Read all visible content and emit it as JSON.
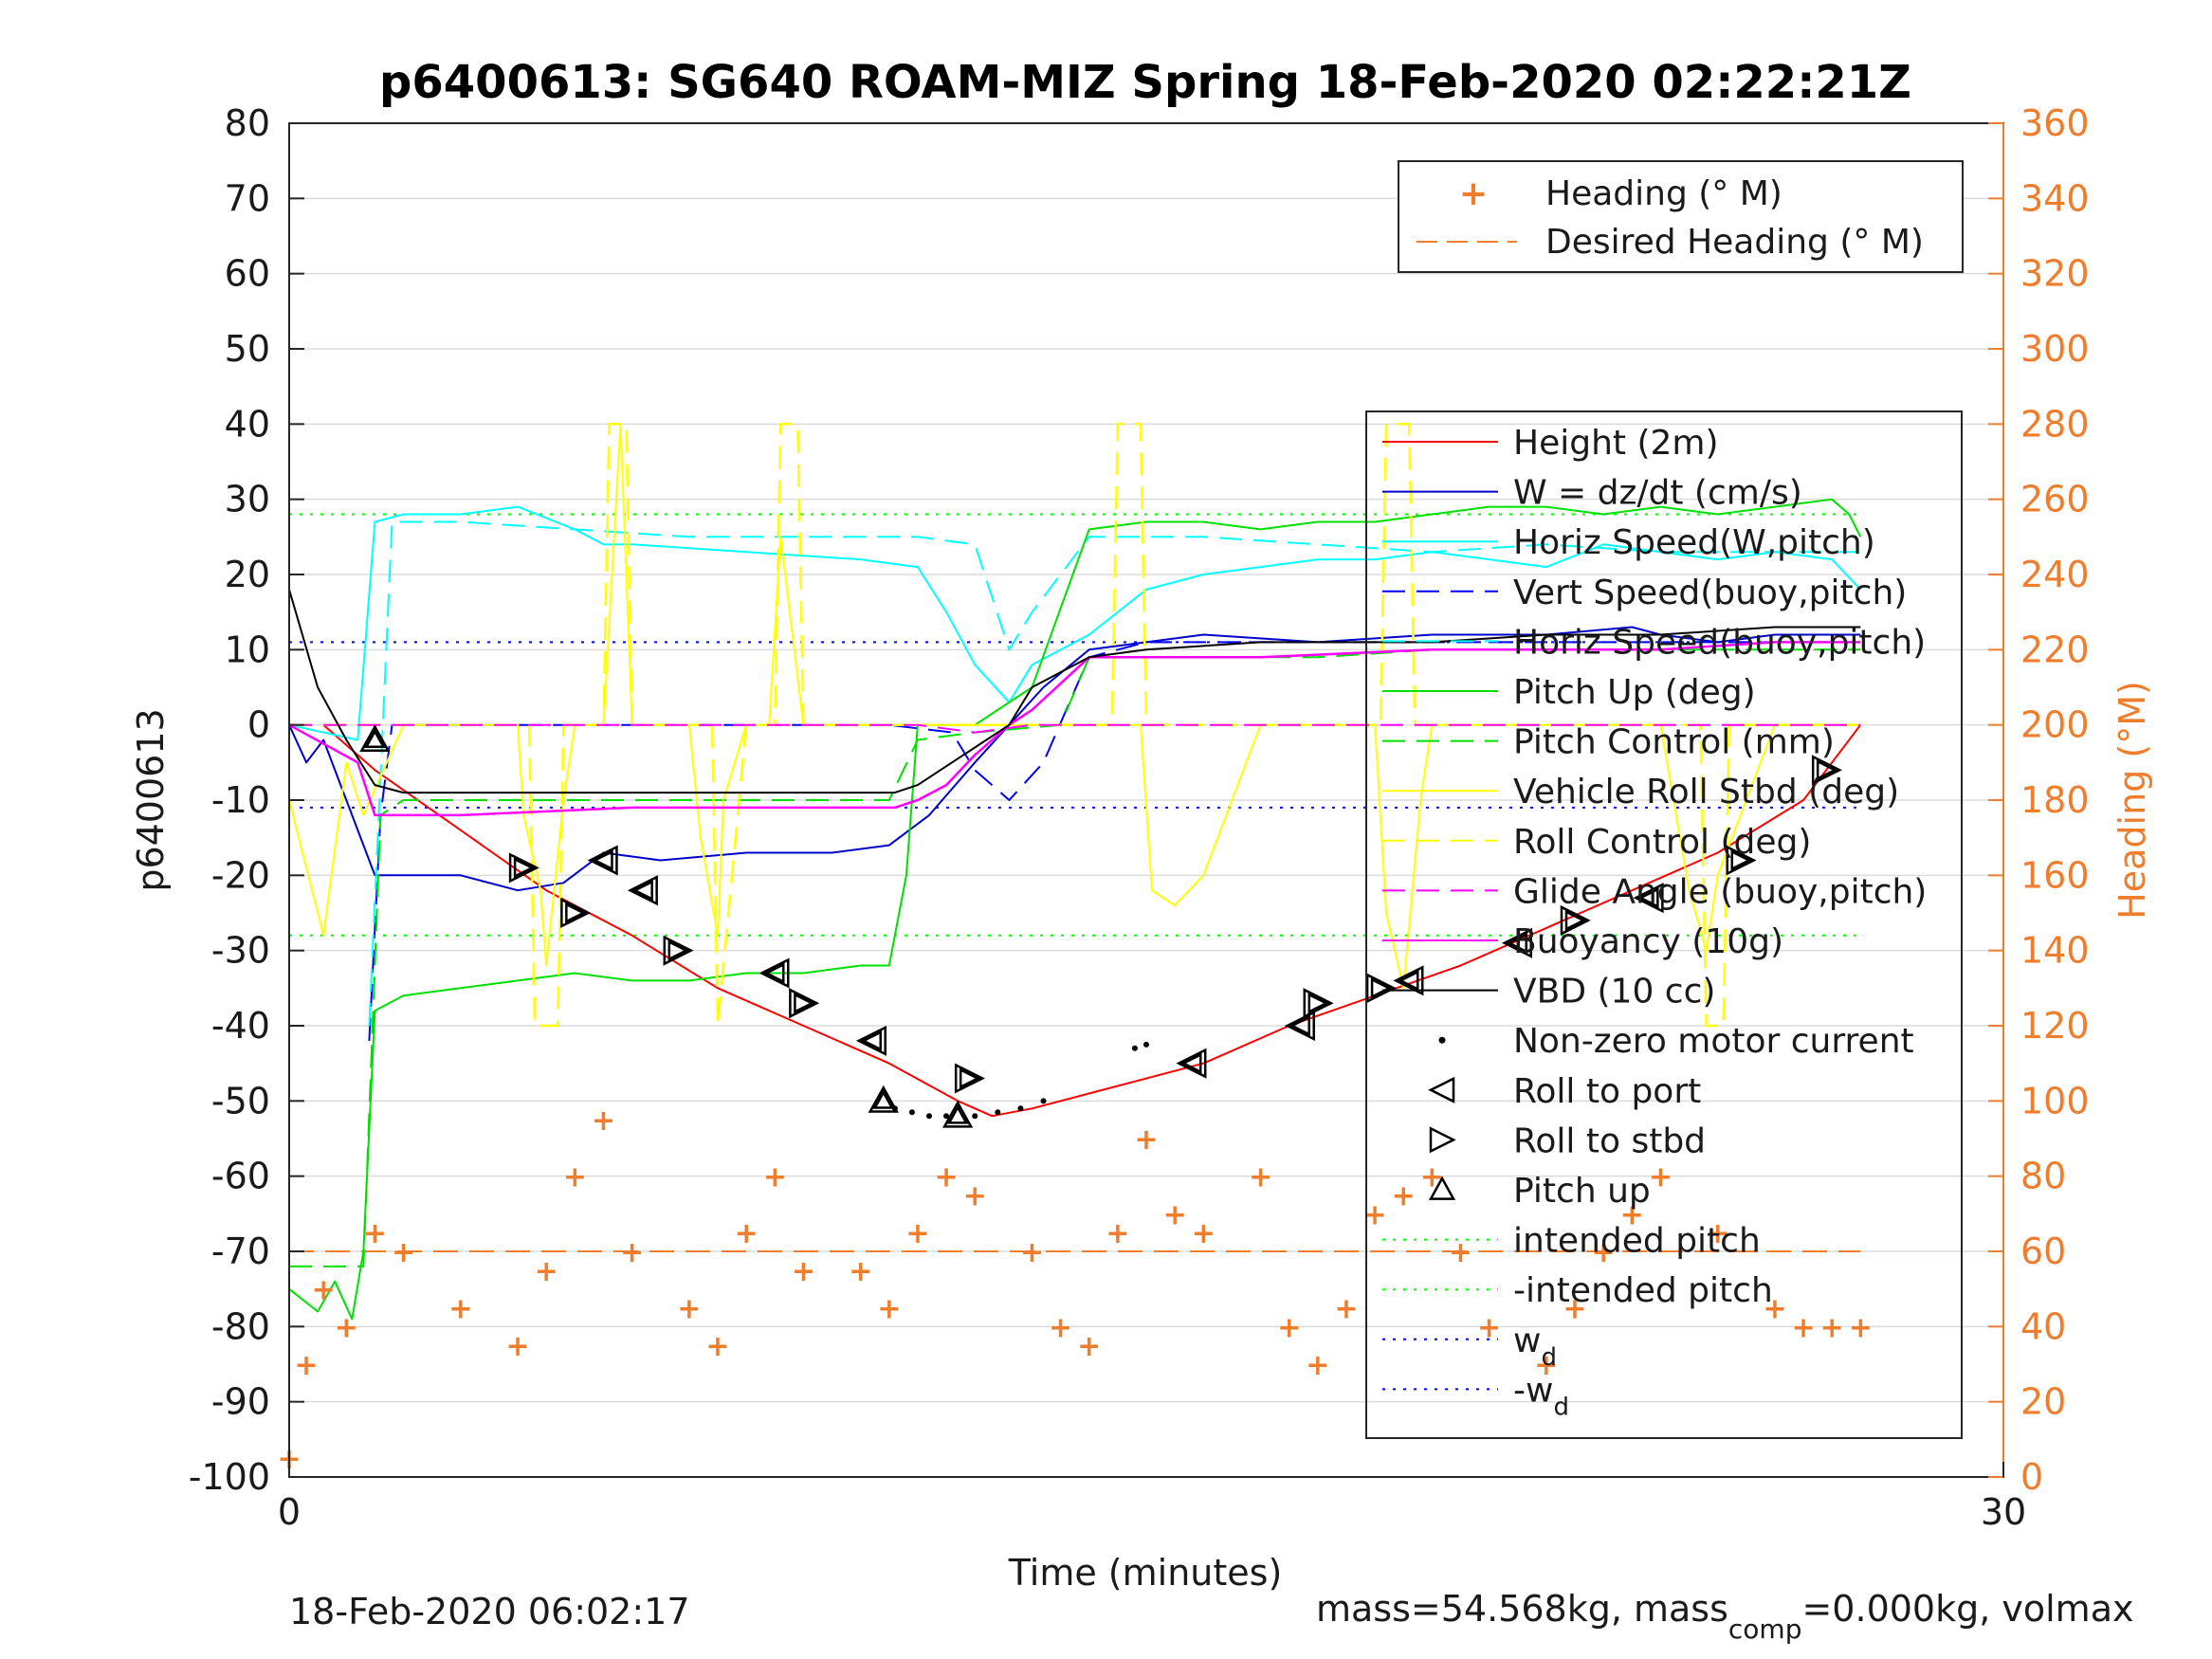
{
  "figure": {
    "title": "p6400613: SG640 ROAM-MIZ Spring 18-Feb-2020 02:22:21Z",
    "footer_left": "18-Feb-2020 06:02:17",
    "footer_right_prefix": "mass=54.568kg, mass",
    "footer_right_sub": "comp",
    "footer_right_suffix": "=0.000kg, volmax"
  },
  "colors": {
    "height": "#ff0000",
    "w": "#0000cc",
    "horiz_w": "#00ffff",
    "vert_buoy": "#0000ff",
    "horiz_buoy": "#00ffff",
    "pitch": "#00e000",
    "pitch_ctrl": "#00e000",
    "roll": "#ffff00",
    "roll_ctrl": "#ffff00",
    "glide": "#ff00ff",
    "buoy": "#ff00ff",
    "vbd": "#000000",
    "heading": "#f07d2c",
    "intended": "#00ff00",
    "wd": "#0000ff"
  },
  "chart_data": {
    "type": "line",
    "title": "p6400613: SG640 ROAM-MIZ Spring 18-Feb-2020 02:22:21Z",
    "xlabel": "Time (minutes)",
    "ylabel": "p6400613",
    "y2label": "Heading (°M)",
    "xlim": [
      0,
      30
    ],
    "ylim": [
      -100,
      80
    ],
    "y2lim": [
      0,
      360
    ],
    "x_ticks": [
      "0",
      "30"
    ],
    "y_ticks": [
      "80",
      "70",
      "60",
      "50",
      "40",
      "30",
      "20",
      "10",
      "0",
      "-10",
      "-20",
      "-30",
      "-40",
      "-50",
      "-60",
      "-70",
      "-80",
      "-90",
      "-100"
    ],
    "y2_ticks": [
      "360",
      "340",
      "320",
      "300",
      "280",
      "260",
      "240",
      "220",
      "200",
      "180",
      "160",
      "140",
      "120",
      "100",
      "80",
      "60",
      "40",
      "20",
      "0"
    ],
    "grid": true,
    "legend_top": [
      "Heading (° M)",
      "Desired Heading (° M)"
    ],
    "legend_main": [
      "Height (2m)",
      "W = dz/dt (cm/s)",
      "Horiz Speed(W,pitch)",
      "Vert Speed(buoy,pitch)",
      "Horiz Speed(buoy,pitch)",
      "Pitch Up (deg)",
      "Pitch Control (mm)",
      "Vehicle Roll Stbd (deg)",
      "Roll Control (deg)",
      "Glide Angle (buoy,pitch)",
      "Buoyancy (10g)",
      "VBD (10 cc)",
      "Non-zero motor current",
      "Roll to port",
      "Roll to stbd",
      "Pitch up",
      "intended pitch",
      "-intended pitch",
      "w",
      "-w"
    ],
    "legend_sub_d": "d",
    "reference_lines": {
      "intended_pitch": 28,
      "neg_intended_pitch": -28,
      "wd": 11,
      "neg_wd": -11,
      "desired_heading": 60
    },
    "series": [
      {
        "name": "Height (2m)",
        "x": [
          0.6,
          1.5,
          3,
          4.5,
          6,
          7.5,
          9,
          10.5,
          11.7,
          12.3,
          13,
          14.5,
          16,
          17.5,
          19,
          20.5,
          22,
          23.5,
          25,
          26.5,
          27.5
        ],
        "y": [
          0,
          -6,
          -14,
          -22,
          -28,
          -35,
          -40,
          -45,
          -50,
          -52,
          -51,
          -48,
          -45,
          -40,
          -36,
          -32,
          -27,
          -22,
          -17,
          -10,
          0
        ]
      },
      {
        "name": "W = dz/dt (cm/s)",
        "x": [
          0,
          0.3,
          0.6,
          1.0,
          1.5,
          3,
          4,
          4.8,
          5.5,
          6.5,
          8,
          9.5,
          10.5,
          11.2,
          12,
          12.6,
          13.2,
          14,
          15,
          16,
          18,
          20,
          22,
          23.5,
          24,
          25,
          26,
          27,
          27.5
        ],
        "y": [
          0,
          -5,
          -2,
          -10,
          -20,
          -20,
          -22,
          -21,
          -17,
          -18,
          -17,
          -17,
          -16,
          -12,
          -5,
          0,
          5,
          10,
          11,
          12,
          11,
          12,
          12,
          13,
          12,
          11,
          12,
          12,
          12
        ]
      },
      {
        "name": "Horiz Speed(W,pitch)",
        "x": [
          0,
          1.2,
          1.5,
          2,
          3,
          4,
          5,
          5.5,
          6,
          8,
          10,
          11,
          11.5,
          12,
          12.6,
          13,
          14,
          15,
          16,
          17,
          18,
          19,
          20,
          21,
          22,
          23,
          24,
          25,
          26,
          27,
          27.5
        ],
        "y": [
          0,
          -2,
          27,
          28,
          28,
          29,
          26,
          24,
          24,
          23,
          22,
          21,
          15,
          8,
          3,
          8,
          12,
          18,
          20,
          21,
          22,
          22,
          23,
          22,
          21,
          24,
          23,
          22,
          23,
          22,
          18
        ]
      },
      {
        "name": "Vert Speed(buoy,pitch)",
        "x": [
          1.4,
          1.6,
          1.8,
          2.2,
          3,
          5,
          8,
          10.5,
          11.6,
          12,
          12.6,
          13.2,
          14,
          15,
          17,
          20,
          22,
          24,
          26,
          27.5
        ],
        "y": [
          -42,
          -12,
          0,
          0,
          0,
          0,
          0,
          0,
          -1,
          -6,
          -10,
          -5,
          9,
          11,
          11,
          11,
          11,
          11,
          11,
          11
        ]
      },
      {
        "name": "Horiz Speed(buoy,pitch)",
        "x": [
          1.4,
          1.8,
          3,
          5,
          7,
          9,
          11,
          12,
          12.6,
          13,
          14,
          16,
          18,
          20,
          22,
          24,
          26,
          27.5
        ],
        "y": [
          -40,
          27,
          27,
          26,
          25,
          25,
          25,
          24,
          10,
          15,
          25,
          25,
          24,
          23,
          24,
          23,
          23,
          23
        ]
      },
      {
        "name": "Pitch Up (deg)",
        "x": [
          0,
          0.5,
          0.8,
          1.1,
          1.3,
          1.5,
          2,
          3,
          4,
          5,
          6,
          7,
          8,
          9,
          10,
          10.5,
          10.8,
          11,
          12,
          13,
          14,
          15,
          16,
          17,
          18,
          19,
          20,
          21,
          22,
          23,
          24,
          25,
          26,
          27,
          27.3,
          27.5
        ],
        "y": [
          -75,
          -78,
          -74,
          -79,
          -70,
          -38,
          -36,
          -35,
          -34,
          -33,
          -34,
          -34,
          -33,
          -33,
          -32,
          -32,
          -20,
          0,
          0,
          5,
          26,
          27,
          27,
          26,
          27,
          27,
          28,
          29,
          29,
          28,
          29,
          28,
          29,
          30,
          28,
          25
        ]
      },
      {
        "name": "Pitch Control (mm)",
        "x": [
          0,
          1.3,
          1.6,
          2,
          4,
          6,
          8,
          10,
          10.5,
          11,
          12,
          13.5,
          14,
          16,
          18,
          20,
          22,
          24,
          26,
          27.5
        ],
        "y": [
          -72,
          -72,
          -12,
          -10,
          -10,
          -10,
          -10,
          -10,
          -10,
          -2,
          -1,
          0,
          9,
          9,
          9,
          10,
          10,
          10,
          10,
          10
        ]
      },
      {
        "name": "Vehicle Roll Stbd (deg)",
        "x": [
          0,
          0.6,
          1,
          1.3,
          2,
          3,
          4,
          4.1,
          4.4,
          4.5,
          4.8,
          5,
          5.1,
          5.5,
          5.8,
          6,
          7,
          7.2,
          7.5,
          7.6,
          8,
          8.4,
          8.6,
          9,
          10,
          11,
          12,
          13,
          14,
          14.5,
          14.9,
          15.1,
          15.5,
          16,
          17,
          18,
          19,
          19.2,
          19.5,
          19.8,
          20,
          21,
          22,
          23,
          24,
          24.5,
          24.8,
          25,
          26,
          27,
          27.5
        ],
        "y": [
          -10,
          -28,
          -5,
          -12,
          0,
          0,
          0,
          -12,
          -22,
          -32,
          -10,
          0,
          0,
          0,
          40,
          0,
          0,
          -15,
          -28,
          -10,
          0,
          0,
          25,
          0,
          0,
          0,
          0,
          0,
          0,
          0,
          0,
          -22,
          -24,
          -20,
          0,
          0,
          0,
          -25,
          -35,
          -10,
          0,
          0,
          0,
          0,
          0,
          -22,
          -30,
          -20,
          0,
          0,
          0
        ]
      },
      {
        "name": "Roll Control (deg)",
        "x": [
          0,
          1,
          2,
          4.2,
          4.3,
          4.7,
          4.8,
          5.5,
          5.6,
          5.9,
          6,
          7.4,
          7.5,
          8,
          8.5,
          8.6,
          8.9,
          9,
          14.4,
          14.5,
          14.9,
          15,
          19.1,
          19.2,
          19.6,
          19.7,
          24.7,
          24.8,
          25.1,
          25.2,
          27.5
        ],
        "y": [
          0,
          0,
          0,
          0,
          -40,
          -40,
          0,
          0,
          40,
          40,
          0,
          0,
          -40,
          0,
          0,
          40,
          40,
          0,
          0,
          40,
          40,
          0,
          0,
          40,
          40,
          0,
          0,
          -40,
          -40,
          0,
          0
        ]
      },
      {
        "name": "Glide Angle (buoy,pitch)",
        "x": [
          0,
          3,
          6,
          9,
          10,
          11,
          12,
          13,
          14,
          16,
          18,
          20,
          22,
          24,
          26,
          27.5
        ],
        "y": [
          0,
          0,
          0,
          0,
          0,
          0,
          -1,
          0,
          0,
          0,
          0,
          0,
          0,
          0,
          0,
          0
        ]
      },
      {
        "name": "Buoyancy (10g)",
        "x": [
          0,
          1.2,
          1.5,
          3,
          6,
          9,
          10,
          10.6,
          11,
          11.5,
          12,
          12.6,
          13,
          14,
          15,
          17,
          20,
          22,
          24,
          26,
          27.5
        ],
        "y": [
          0,
          -5,
          -12,
          -12,
          -11,
          -11,
          -11,
          -11,
          -10,
          -8,
          -4,
          0,
          2,
          9,
          9,
          9,
          10,
          10,
          10,
          11,
          11
        ]
      },
      {
        "name": "VBD (10 cc)",
        "x": [
          0,
          0.5,
          1,
          1.5,
          2,
          3,
          5,
          7,
          9,
          10,
          10.6,
          11,
          12,
          12.6,
          13,
          14,
          15,
          17,
          20,
          22,
          24,
          26,
          27.5
        ],
        "y": [
          18,
          5,
          -2,
          -8,
          -9,
          -9,
          -9,
          -9,
          -9,
          -9,
          -9,
          -8,
          -3,
          0,
          5,
          9,
          10,
          11,
          11,
          12,
          12,
          13,
          13
        ]
      },
      {
        "name": "Heading (° M)",
        "x": [
          0,
          0.3,
          0.6,
          1,
          1.5,
          2,
          3,
          4,
          4.5,
          5,
          5.5,
          6,
          7,
          7.5,
          8,
          8.5,
          9,
          10,
          10.5,
          11,
          11.5,
          12,
          13,
          13.5,
          14,
          14.5,
          15,
          15.5,
          16,
          17,
          17.5,
          18,
          18.5,
          19,
          19.5,
          20,
          20.5,
          21,
          22,
          22.5,
          23,
          23.5,
          24,
          25,
          26,
          26.5,
          27,
          27.5
        ],
        "y": [
          5,
          30,
          50,
          40,
          65,
          60,
          45,
          35,
          55,
          80,
          95,
          60,
          45,
          35,
          65,
          80,
          55,
          55,
          45,
          65,
          80,
          75,
          60,
          40,
          35,
          65,
          90,
          70,
          65,
          80,
          40,
          30,
          45,
          70,
          75,
          80,
          60,
          40,
          30,
          45,
          60,
          70,
          80,
          65,
          45,
          40,
          40,
          40
        ]
      }
    ],
    "markers": {
      "roll_to_port": [
        [
          5.5,
          -18
        ],
        [
          6.2,
          -22
        ],
        [
          8.5,
          -33
        ],
        [
          10.2,
          -42
        ],
        [
          15.8,
          -45
        ],
        [
          17.7,
          -40
        ],
        [
          19.6,
          -34
        ],
        [
          21.5,
          -29
        ],
        [
          23.8,
          -23
        ]
      ],
      "roll_to_stbd": [
        [
          4.1,
          -19
        ],
        [
          5.0,
          -25
        ],
        [
          6.8,
          -30
        ],
        [
          9.0,
          -37
        ],
        [
          11.9,
          -47
        ],
        [
          18.0,
          -37
        ],
        [
          19.1,
          -35
        ],
        [
          22.5,
          -26
        ],
        [
          25.4,
          -18
        ],
        [
          26.9,
          -6
        ]
      ],
      "pitch_up": [
        [
          1.5,
          -2
        ],
        [
          10.4,
          -50
        ],
        [
          11.7,
          -52
        ]
      ],
      "motor_current": [
        [
          10.6,
          -51
        ],
        [
          10.9,
          -51.5
        ],
        [
          11.2,
          -52
        ],
        [
          11.5,
          -52
        ],
        [
          12.0,
          -52
        ],
        [
          12.4,
          -51.5
        ],
        [
          12.8,
          -51
        ],
        [
          13.2,
          -50
        ],
        [
          14.8,
          -43
        ],
        [
          15.0,
          -42.5
        ]
      ]
    }
  }
}
